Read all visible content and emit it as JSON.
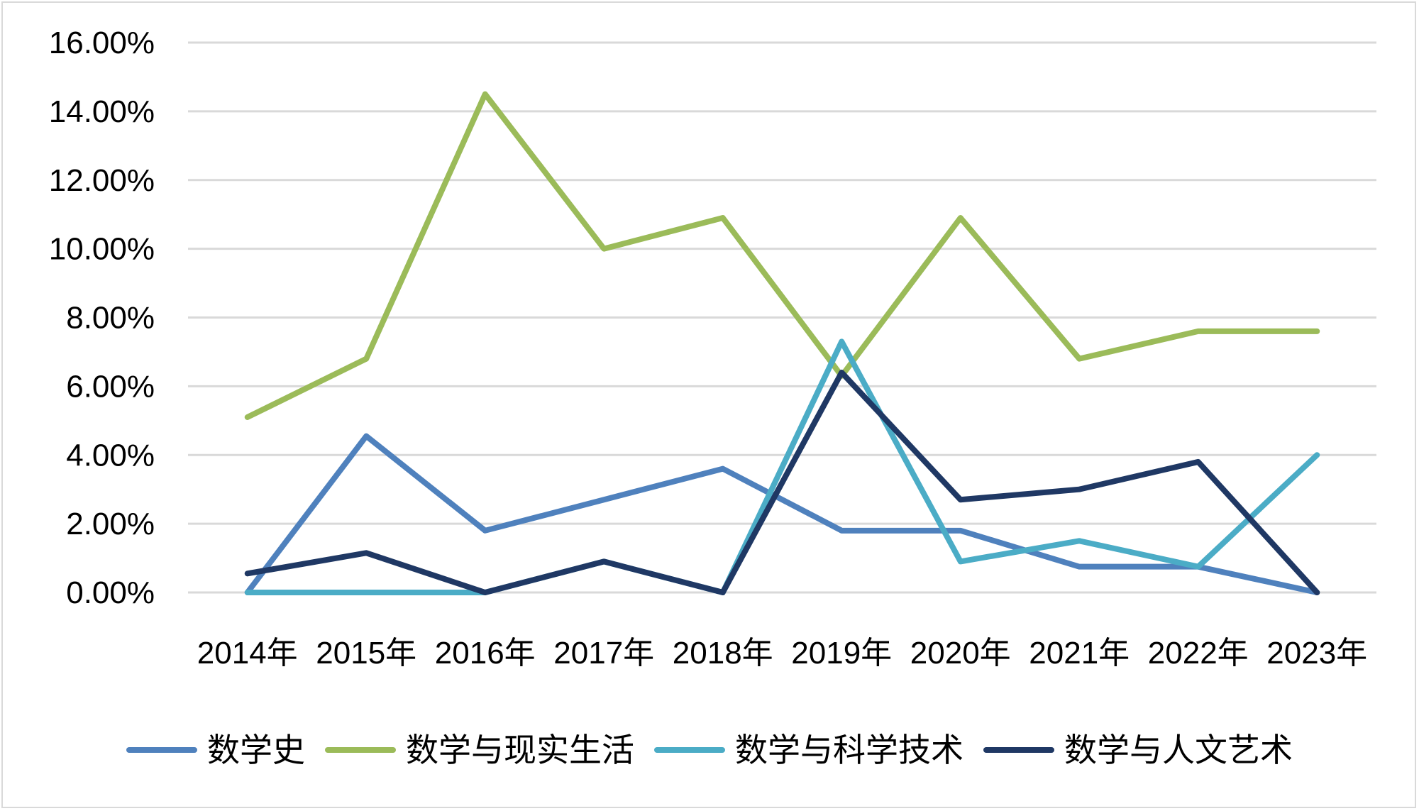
{
  "chart_data": {
    "type": "line",
    "title": "",
    "xlabel": "",
    "ylabel": "",
    "categories": [
      "2014年",
      "2015年",
      "2016年",
      "2017年",
      "2018年",
      "2019年",
      "2020年",
      "2021年",
      "2022年",
      "2023年"
    ],
    "ylim": [
      0,
      16
    ],
    "yticks": [
      "0.00%",
      "2.00%",
      "4.00%",
      "6.00%",
      "8.00%",
      "10.00%",
      "12.00%",
      "14.00%",
      "16.00%"
    ],
    "grid": true,
    "legend_position": "bottom",
    "series": [
      {
        "name": "数学史",
        "color": "#4f81bd",
        "values": [
          0.0,
          4.55,
          1.8,
          2.7,
          3.6,
          1.8,
          1.8,
          0.75,
          0.75,
          0.0
        ]
      },
      {
        "name": "数学与现实生活",
        "color": "#9bbb59",
        "values": [
          5.1,
          6.8,
          14.5,
          10.0,
          10.9,
          6.3,
          10.9,
          6.8,
          7.6,
          7.6
        ]
      },
      {
        "name": "数学与科学技术",
        "color": "#4bacc6",
        "values": [
          0.0,
          0.0,
          0.0,
          0.9,
          0.0,
          7.3,
          0.9,
          1.5,
          0.75,
          4.0
        ]
      },
      {
        "name": "数学与人文艺术",
        "color": "#1f3864",
        "values": [
          0.55,
          1.15,
          0.0,
          0.9,
          0.0,
          6.4,
          2.7,
          3.0,
          3.8,
          0.0
        ]
      }
    ]
  }
}
